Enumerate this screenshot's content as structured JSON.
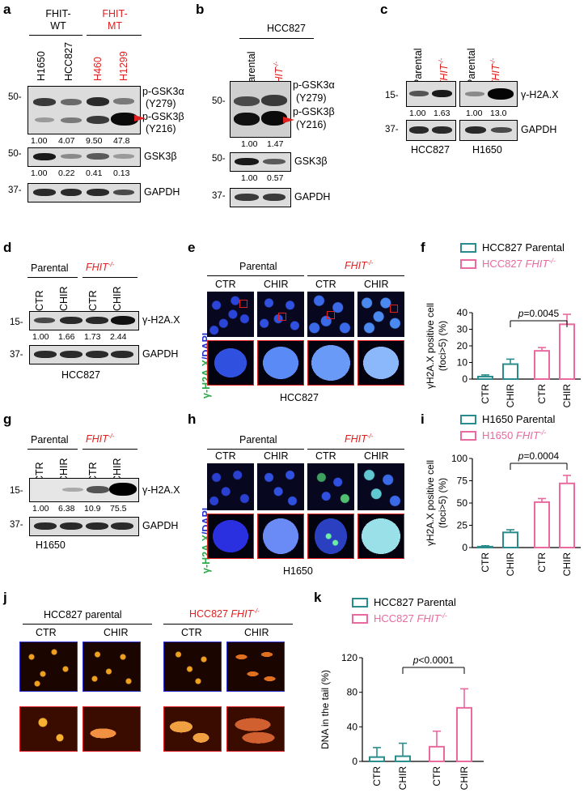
{
  "panels": [
    "a",
    "b",
    "c",
    "d",
    "e",
    "f",
    "g",
    "h",
    "i",
    "j",
    "k"
  ],
  "a": {
    "groups": [
      "FHIT-\nWT",
      "FHIT-\nMT"
    ],
    "group_wt": "FHIT-WT",
    "group_mt": "FHIT-MT",
    "lanes": [
      "H1650",
      "HCC827",
      "H460",
      "H1299"
    ],
    "mw": [
      "50-",
      "50-",
      "37-"
    ],
    "labels": [
      "p-GSK3α",
      "(Y279)",
      "p-GSK3β",
      "(Y216)",
      "GSK3β",
      "GAPDH"
    ],
    "q1": [
      "1.00",
      "4.07",
      "9.50",
      "47.8"
    ],
    "q2": [
      "1.00",
      "0.22",
      "0.41",
      "0.13"
    ]
  },
  "b": {
    "cell": "HCC827",
    "lanes": [
      "Parental",
      "FHIT-/-"
    ],
    "mw": [
      "50-",
      "50-",
      "37-"
    ],
    "labels": [
      "p-GSK3α",
      "(Y279)",
      "p-GSK3β",
      "(Y216)",
      "GSK3β",
      "GAPDH"
    ],
    "q1": [
      "1.00",
      "1.47"
    ],
    "q2": [
      "1.00",
      "0.57"
    ]
  },
  "c": {
    "lanes": [
      "Parental",
      "FHIT-/-",
      "Parental",
      "FHIT-/-"
    ],
    "mw": [
      "15-",
      "37-"
    ],
    "labels": [
      "γ-H2A.X",
      "GAPDH"
    ],
    "q": [
      "1.00",
      "1.63",
      "1.00",
      "13.0"
    ],
    "cells": [
      "HCC827",
      "H1650"
    ]
  },
  "d": {
    "groups": [
      "Parental",
      "FHIT-/-"
    ],
    "lanes": [
      "CTR",
      "CHIR",
      "CTR",
      "CHIR"
    ],
    "mw": [
      "15-",
      "37-"
    ],
    "labels": [
      "γ-H2A.X",
      "GAPDH"
    ],
    "q": [
      "1.00",
      "1.66",
      "1.73",
      "2.44"
    ],
    "cell": "HCC827"
  },
  "e": {
    "groups": [
      "Parental",
      "FHIT-/-"
    ],
    "lanes": [
      "CTR",
      "CHIR",
      "CTR",
      "CHIR"
    ],
    "stain_a": "γ-H2A.X",
    "stain_b": "/DAPI",
    "cell": "HCC827"
  },
  "g": {
    "groups": [
      "Parental",
      "FHIT-/-"
    ],
    "lanes": [
      "CTR",
      "CHIR",
      "CTR",
      "CHIR"
    ],
    "mw": [
      "15-",
      "37-"
    ],
    "labels": [
      "γ-H2A.X",
      "GAPDH"
    ],
    "q": [
      "1.00",
      "6.38",
      "10.9",
      "75.5"
    ],
    "cell": "H1650"
  },
  "h": {
    "groups": [
      "Parental",
      "FHIT-/-"
    ],
    "lanes": [
      "CTR",
      "CHIR",
      "CTR",
      "CHIR"
    ],
    "stain_a": "γ-H2A.X",
    "stain_b": "/DAPI",
    "cell": "H1650"
  },
  "j": {
    "groups": [
      "HCC827 parental",
      "HCC827 FHIT-/-"
    ],
    "lanes": [
      "CTR",
      "CHIR",
      "CTR",
      "CHIR"
    ]
  },
  "colors": {
    "parental": "#2a8c8c",
    "fhit": "#e86a9e",
    "red": "#e02020"
  },
  "chart_data": [
    {
      "panel": "f",
      "type": "bar",
      "categories": [
        "CTR",
        "CHIR",
        "CTR",
        "CHIR"
      ],
      "series": [
        {
          "name": "HCC827 Parental",
          "values": [
            1.5,
            9,
            null,
            null
          ],
          "errors": [
            1,
            3,
            null,
            null
          ]
        },
        {
          "name": "HCC827 FHIT-/-",
          "values": [
            null,
            null,
            17,
            33
          ],
          "errors": [
            null,
            null,
            2,
            6
          ]
        }
      ],
      "ylabel": "γH2A.X positive cell\n(foci>5) (%)",
      "yticks": [
        "0",
        "10",
        "20",
        "30",
        "40"
      ],
      "ylim": [
        0,
        40
      ],
      "annotation": "p=0.0045"
    },
    {
      "panel": "i",
      "type": "bar",
      "categories": [
        "CTR",
        "CHIR",
        "CTR",
        "CHIR"
      ],
      "series": [
        {
          "name": "H1650 Parental",
          "values": [
            1,
            17,
            null,
            null
          ],
          "errors": [
            1,
            3,
            null,
            null
          ]
        },
        {
          "name": "H1650 FHIT-/-",
          "values": [
            null,
            null,
            51,
            72
          ],
          "errors": [
            null,
            null,
            4,
            9
          ]
        }
      ],
      "ylabel": "γH2A.X positive cell\n(foci>5) (%)",
      "yticks": [
        "0",
        "25",
        "50",
        "75",
        "100"
      ],
      "ylim": [
        0,
        100
      ],
      "annotation": "p=0.0004"
    },
    {
      "panel": "k",
      "type": "bar",
      "categories": [
        "CTR",
        "CHIR",
        "CTR",
        "CHIR"
      ],
      "series": [
        {
          "name": "HCC827 Parental",
          "values": [
            5,
            6,
            null,
            null
          ],
          "errors": [
            11,
            15,
            null,
            null
          ]
        },
        {
          "name": "HCC827 FHIT-/-",
          "values": [
            null,
            null,
            17,
            62
          ],
          "errors": [
            null,
            null,
            18,
            22
          ]
        }
      ],
      "ylabel": "DNA in the tail (%)",
      "yticks": [
        "0",
        "40",
        "80",
        "120"
      ],
      "ylim": [
        0,
        120
      ],
      "annotation": "p<0.0001"
    }
  ]
}
